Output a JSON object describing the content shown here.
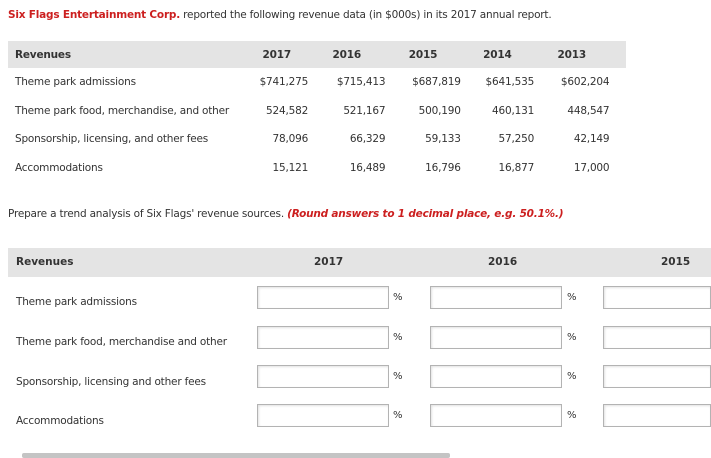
{
  "intro": {
    "company": "Six Flags Entertainment Corp.",
    "text": " reported the following revenue data (in $000s) in its 2017 annual report."
  },
  "revenue_table": {
    "header": [
      "Revenues",
      "2017",
      "2016",
      "2015",
      "2014",
      "2013"
    ],
    "rows": [
      {
        "label": "Theme park admissions",
        "values": [
          "$741,275",
          "$715,413",
          "$687,819",
          "$641,535",
          "$602,204"
        ]
      },
      {
        "label": "Theme park food, merchandise, and other",
        "values": [
          "524,582",
          "521,167",
          "500,190",
          "460,131",
          "448,547"
        ]
      },
      {
        "label": "Sponsorship, licensing, and other fees",
        "values": [
          "78,096",
          "66,329",
          "59,133",
          "57,250",
          "42,149"
        ]
      },
      {
        "label": "Accommodations",
        "values": [
          "15,121",
          "16,489",
          "16,796",
          "16,877",
          "17,000"
        ]
      }
    ]
  },
  "prompt": {
    "text": "Prepare a trend analysis of Six Flags' revenue sources. ",
    "note": "(Round answers to 1 decimal place, e.g. 50.1%.)"
  },
  "answer_table": {
    "header": {
      "label": "Revenues",
      "years": [
        "2017",
        "2016",
        "2015"
      ]
    },
    "rows": [
      {
        "label": "Theme park admissions"
      },
      {
        "label": "Theme park food, merchandise and other"
      },
      {
        "label": "Sponsorship, licensing and other fees"
      },
      {
        "label": "Accommodations"
      }
    ],
    "percent_symbol": "%",
    "inputs": [
      [
        "",
        "",
        ""
      ],
      [
        "",
        "",
        ""
      ],
      [
        "",
        "",
        ""
      ],
      [
        "",
        "",
        ""
      ]
    ]
  },
  "colors": {
    "accent_red": "#cc1f1f",
    "header_gray": "#e4e4e4"
  }
}
